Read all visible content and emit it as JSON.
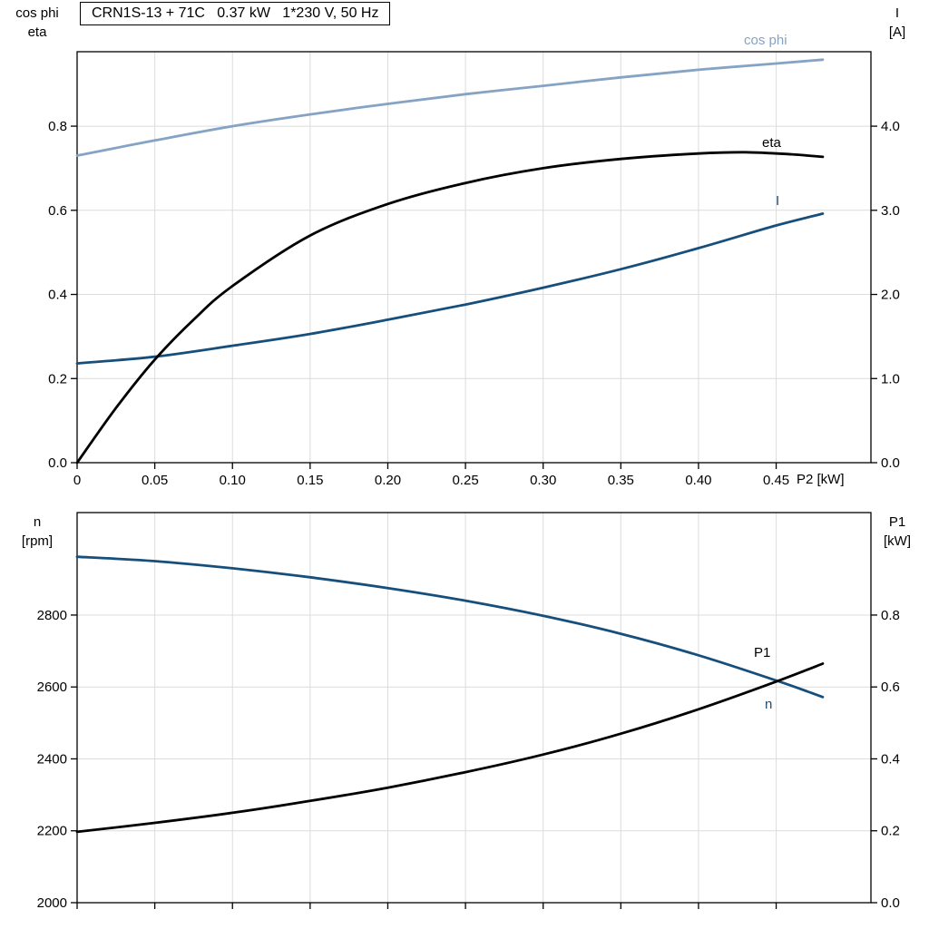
{
  "colors": {
    "black": "#000000",
    "dark_blue": "#174f7c",
    "light_blue": "#85a3c4",
    "grid": "#dcdcdc",
    "axis": "#000000",
    "background": "#ffffff"
  },
  "chart_data": [
    {
      "type": "line",
      "title": "CRN1S-13 + 71C   0.37 kW   1*230 V, 50 Hz",
      "grid": true,
      "x_axis": {
        "label": "P2 [kW]",
        "range": [
          0,
          0.511
        ],
        "ticks": [
          0,
          0.05,
          0.1,
          0.15,
          0.2,
          0.25,
          0.3,
          0.35,
          0.4,
          0.45
        ],
        "tick_labels": [
          "0",
          "0.05",
          "0.10",
          "0.15",
          "0.20",
          "0.25",
          "0.30",
          "0.35",
          "0.40",
          "0.45"
        ]
      },
      "left_axis": {
        "label_lines": [
          "cos phi",
          "eta"
        ],
        "range": [
          0,
          0.977
        ],
        "ticks": [
          0,
          0.2,
          0.4,
          0.6,
          0.8
        ],
        "tick_labels": [
          "0.0",
          "0.2",
          "0.4",
          "0.6",
          "0.8"
        ]
      },
      "right_axis": {
        "label_lines": [
          "I",
          "[A]"
        ],
        "range": [
          0,
          4.885
        ],
        "ticks": [
          0,
          1,
          2,
          3,
          4
        ],
        "tick_labels": [
          "0.0",
          "1.0",
          "2.0",
          "3.0",
          "4.0"
        ]
      },
      "series": [
        {
          "name": "cos phi",
          "axis": "left",
          "color": "#85a3c4",
          "x": [
            0,
            0.05,
            0.1,
            0.15,
            0.2,
            0.25,
            0.3,
            0.35,
            0.4,
            0.45,
            0.48
          ],
          "y": [
            0.73,
            0.766,
            0.8,
            0.828,
            0.853,
            0.876,
            0.896,
            0.916,
            0.934,
            0.949,
            0.958
          ]
        },
        {
          "name": "I",
          "axis": "right",
          "color": "#174f7c",
          "x": [
            0,
            0.05,
            0.1,
            0.15,
            0.2,
            0.25,
            0.3,
            0.35,
            0.4,
            0.45,
            0.48
          ],
          "y": [
            1.18,
            1.26,
            1.39,
            1.53,
            1.7,
            1.88,
            2.08,
            2.3,
            2.55,
            2.82,
            2.96
          ]
        },
        {
          "name": "eta",
          "axis": "left",
          "color": "#000000",
          "x": [
            0,
            0.025,
            0.05,
            0.075,
            0.1,
            0.15,
            0.2,
            0.25,
            0.3,
            0.35,
            0.4,
            0.43,
            0.46,
            0.48
          ],
          "y": [
            0,
            0.13,
            0.245,
            0.34,
            0.42,
            0.54,
            0.615,
            0.665,
            0.7,
            0.722,
            0.735,
            0.738,
            0.733,
            0.727
          ]
        }
      ]
    },
    {
      "type": "line",
      "title": "",
      "grid": true,
      "x_axis": {
        "label": "",
        "range": [
          0,
          0.511
        ],
        "ticks": [
          0,
          0.05,
          0.1,
          0.15,
          0.2,
          0.25,
          0.3,
          0.35,
          0.4,
          0.45
        ],
        "tick_labels": []
      },
      "left_axis": {
        "label_lines": [
          "n",
          "[rpm]"
        ],
        "range": [
          2000,
          3085
        ],
        "ticks": [
          2000,
          2200,
          2400,
          2600,
          2800
        ],
        "tick_labels": [
          "2000",
          "2200",
          "2400",
          "2600",
          "2800"
        ]
      },
      "right_axis": {
        "label_lines": [
          "P1",
          "[kW]"
        ],
        "range": [
          0,
          1.085
        ],
        "ticks": [
          0,
          0.2,
          0.4,
          0.6,
          0.8
        ],
        "tick_labels": [
          "0.0",
          "0.2",
          "0.4",
          "0.6",
          "0.8"
        ]
      },
      "series": [
        {
          "name": "n",
          "axis": "left",
          "color": "#174f7c",
          "x": [
            0,
            0.05,
            0.1,
            0.15,
            0.2,
            0.25,
            0.3,
            0.35,
            0.4,
            0.45,
            0.48
          ],
          "y": [
            2962,
            2950,
            2930,
            2905,
            2875,
            2840,
            2798,
            2748,
            2688,
            2618,
            2572
          ]
        },
        {
          "name": "P1",
          "axis": "right",
          "color": "#000000",
          "x": [
            0,
            0.05,
            0.1,
            0.15,
            0.2,
            0.25,
            0.3,
            0.35,
            0.4,
            0.45,
            0.48
          ],
          "y": [
            0.197,
            0.222,
            0.25,
            0.283,
            0.32,
            0.363,
            0.412,
            0.47,
            0.538,
            0.615,
            0.665
          ]
        }
      ]
    }
  ]
}
